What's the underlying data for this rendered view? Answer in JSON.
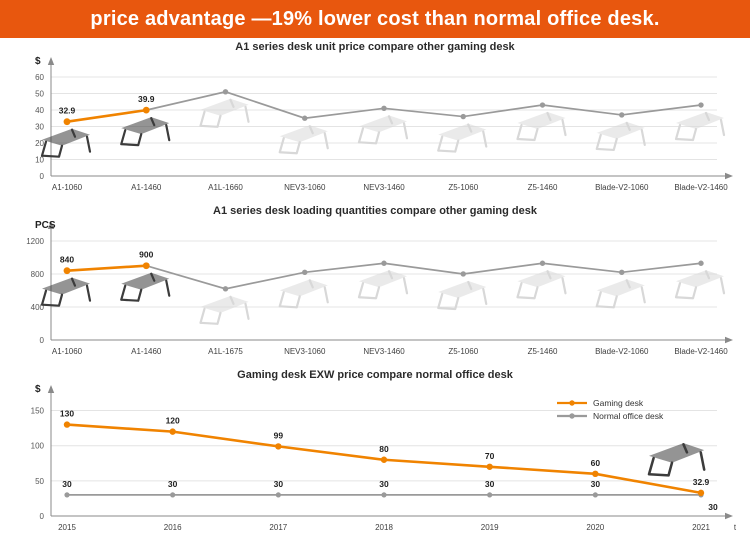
{
  "banner": {
    "text": "price advantage —19% lower cost than normal office desk."
  },
  "colors": {
    "accent": "#E8570E",
    "line_orange": "#F08300",
    "line_gray": "#9A9A9A",
    "desk_dark": "#3C3C3C",
    "desk_light": "#D8D8D8",
    "axis": "#8A8A8A"
  },
  "chart_data": [
    {
      "type": "line",
      "title": "A1 series desk unit price compare other gaming desk",
      "unit": "$",
      "categories": [
        "A1-1060",
        "A1-1460",
        "A1L-1660",
        "NEV3-1060",
        "NEV3-1460",
        "Z5-1060",
        "Z5-1460",
        "Blade-V2-1060",
        "Blade-V2-1460"
      ],
      "values": [
        32.9,
        39.9,
        51,
        35,
        41,
        36,
        43,
        37,
        43
      ],
      "point_labels": [
        "32.9",
        "39.9",
        "",
        "",
        "",
        "",
        "",
        "",
        ""
      ],
      "highlight_count": 2,
      "desk_icons": true,
      "yticks": [
        0,
        10,
        20,
        30,
        40,
        50,
        60
      ],
      "ylim": [
        0,
        63
      ],
      "grid": true,
      "legend_position": "none"
    },
    {
      "type": "line",
      "title": "A1 series desk loading quantities compare other gaming desk",
      "unit": "PCS",
      "categories": [
        "A1-1060",
        "A1-1460",
        "A1L-1675",
        "NEV3-1060",
        "NEV3-1460",
        "Z5-1060",
        "Z5-1460",
        "Blade-V2-1060",
        "Blade-V2-1460"
      ],
      "values": [
        840,
        900,
        620,
        820,
        930,
        800,
        930,
        820,
        930
      ],
      "point_labels": [
        "840",
        "900",
        "",
        "",
        "",
        "",
        "",
        "",
        ""
      ],
      "highlight_count": 2,
      "desk_icons": true,
      "yticks": [
        0,
        400,
        800,
        1200
      ],
      "ylim": [
        0,
        1260
      ],
      "grid": true,
      "legend_position": "none"
    },
    {
      "type": "line",
      "title": "Gaming desk  EXW price compare normal office desk",
      "unit": "$",
      "categories": [
        "2015",
        "2016",
        "2017",
        "2018",
        "2019",
        "2020",
        "2021"
      ],
      "x_axis_suffix": "t",
      "series": [
        {
          "name": "Gaming desk",
          "color_key": "orange",
          "values": [
            130,
            120,
            99,
            80,
            70,
            60,
            32.9
          ],
          "labels": [
            "130",
            "120",
            "99",
            "80",
            "70",
            "60",
            "32.9"
          ]
        },
        {
          "name": "Normal office desk",
          "color_key": "gray",
          "values": [
            30,
            30,
            30,
            30,
            30,
            30,
            30
          ],
          "labels": [
            "30",
            "30",
            "30",
            "30",
            "30",
            "30",
            "30"
          ]
        }
      ],
      "end_desk_icon": true,
      "yticks": [
        0,
        50,
        100,
        150
      ],
      "ylim": [
        0,
        165
      ],
      "grid": true,
      "legend_position": "top-right"
    }
  ]
}
